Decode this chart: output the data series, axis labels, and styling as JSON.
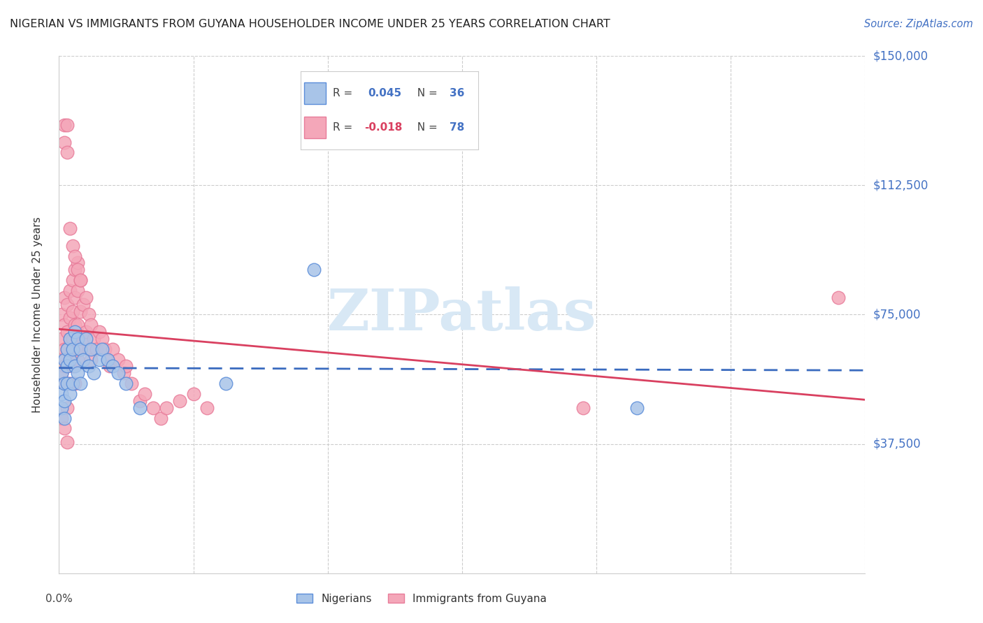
{
  "title": "NIGERIAN VS IMMIGRANTS FROM GUYANA HOUSEHOLDER INCOME UNDER 25 YEARS CORRELATION CHART",
  "source": "Source: ZipAtlas.com",
  "ylabel": "Householder Income Under 25 years",
  "xmin": 0.0,
  "xmax": 0.3,
  "ymin": 0,
  "ymax": 150000,
  "blue_color": "#a8c4e8",
  "pink_color": "#f4a7b9",
  "blue_edge": "#5b8dd9",
  "pink_edge": "#e87c9a",
  "trend_blue_color": "#3a6bbf",
  "trend_pink_color": "#d94060",
  "right_label_color": "#4472c4",
  "title_color": "#222222",
  "source_color": "#4472c4",
  "grid_color": "#cccccc",
  "watermark_color": "#d8e8f5",
  "nigerians_x": [
    0.001,
    0.001,
    0.001,
    0.002,
    0.002,
    0.002,
    0.002,
    0.003,
    0.003,
    0.003,
    0.004,
    0.004,
    0.004,
    0.005,
    0.005,
    0.006,
    0.006,
    0.007,
    0.007,
    0.008,
    0.008,
    0.009,
    0.01,
    0.011,
    0.012,
    0.013,
    0.015,
    0.016,
    0.018,
    0.02,
    0.022,
    0.025,
    0.03,
    0.062,
    0.095,
    0.215
  ],
  "nigerians_y": [
    58000,
    52000,
    48000,
    62000,
    55000,
    50000,
    45000,
    65000,
    60000,
    55000,
    68000,
    62000,
    52000,
    65000,
    55000,
    70000,
    60000,
    68000,
    58000,
    65000,
    55000,
    62000,
    68000,
    60000,
    65000,
    58000,
    62000,
    65000,
    62000,
    60000,
    58000,
    55000,
    48000,
    55000,
    88000,
    48000
  ],
  "guyana_x": [
    0.001,
    0.001,
    0.001,
    0.001,
    0.002,
    0.002,
    0.002,
    0.002,
    0.002,
    0.002,
    0.002,
    0.003,
    0.003,
    0.003,
    0.003,
    0.003,
    0.003,
    0.004,
    0.004,
    0.004,
    0.004,
    0.004,
    0.005,
    0.005,
    0.005,
    0.005,
    0.006,
    0.006,
    0.006,
    0.006,
    0.006,
    0.007,
    0.007,
    0.007,
    0.007,
    0.008,
    0.008,
    0.008,
    0.009,
    0.009,
    0.01,
    0.01,
    0.011,
    0.011,
    0.012,
    0.012,
    0.013,
    0.014,
    0.015,
    0.016,
    0.017,
    0.018,
    0.019,
    0.02,
    0.022,
    0.024,
    0.025,
    0.027,
    0.03,
    0.032,
    0.035,
    0.038,
    0.04,
    0.045,
    0.05,
    0.055,
    0.003,
    0.003,
    0.004,
    0.005,
    0.006,
    0.007,
    0.008,
    0.195,
    0.29,
    0.001,
    0.002,
    0.003
  ],
  "guyana_y": [
    68000,
    62000,
    75000,
    58000,
    72000,
    65000,
    60000,
    55000,
    80000,
    130000,
    125000,
    78000,
    70000,
    65000,
    60000,
    55000,
    48000,
    82000,
    74000,
    68000,
    62000,
    55000,
    85000,
    76000,
    68000,
    60000,
    88000,
    80000,
    72000,
    64000,
    55000,
    90000,
    82000,
    72000,
    62000,
    85000,
    76000,
    65000,
    78000,
    68000,
    80000,
    70000,
    75000,
    65000,
    72000,
    62000,
    68000,
    65000,
    70000,
    68000,
    65000,
    62000,
    60000,
    65000,
    62000,
    58000,
    60000,
    55000,
    50000,
    52000,
    48000,
    45000,
    48000,
    50000,
    52000,
    48000,
    130000,
    122000,
    100000,
    95000,
    92000,
    88000,
    85000,
    48000,
    80000,
    45000,
    42000,
    38000
  ]
}
